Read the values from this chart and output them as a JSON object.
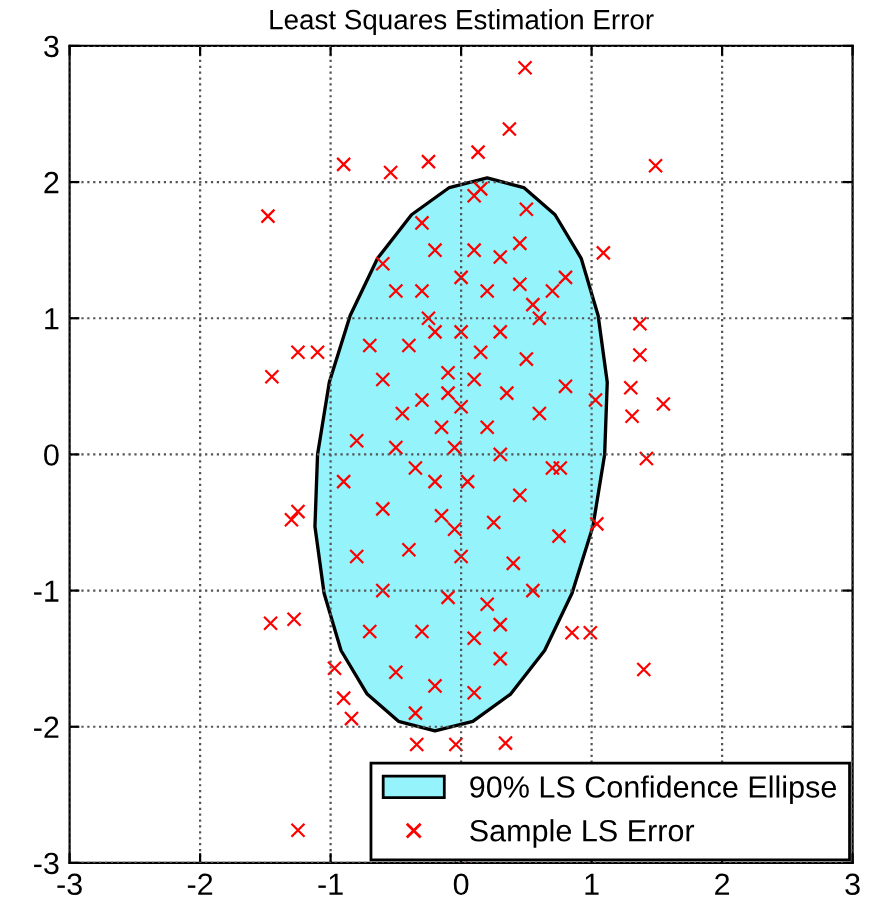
{
  "chart_data": {
    "type": "scatter",
    "title": "Least Squares Estimation Error",
    "xlim": [
      -3,
      3
    ],
    "ylim": [
      -3,
      3
    ],
    "xticks": [
      -3,
      -2,
      -1,
      0,
      1,
      2,
      3
    ],
    "yticks": [
      -3,
      -2,
      -1,
      0,
      1,
      2,
      3
    ],
    "grid": true,
    "legend": "bottom right",
    "series": [
      {
        "name": "90% LS Confidence Ellipse",
        "type": "area",
        "color": "#94f3fb",
        "line_style": "solid",
        "x": [
          1.1,
          1.12,
          1.05,
          0.92,
          0.72,
          0.48,
          0.2,
          -0.09,
          -0.38,
          -0.64,
          -0.85,
          -1.01,
          -1.1,
          -1.12,
          -1.05,
          -0.92,
          -0.72,
          -0.48,
          -0.2,
          0.09,
          0.38,
          0.64,
          0.85,
          1.01,
          1.1
        ],
        "values": [
          0,
          0.53,
          1.02,
          1.44,
          1.76,
          1.96,
          2.03,
          1.96,
          1.76,
          1.44,
          1.02,
          0.53,
          0,
          -0.53,
          -1.02,
          -1.44,
          -1.76,
          -1.96,
          -2.03,
          -1.96,
          -1.76,
          -1.44,
          -1.02,
          -0.53,
          0
        ]
      },
      {
        "name": "Sample LS Error",
        "color": "#ff0000",
        "marker": "cross",
        "x": [
          0.49,
          0.37,
          0.13,
          -0.9,
          -0.54,
          -0.25,
          1.49,
          -1.48,
          1.09,
          1.37,
          1.37,
          -1.45,
          1.55,
          1.3,
          1.42,
          -1.25,
          -1.1,
          1.04,
          1.4,
          -1.46,
          -1.28,
          -1.25,
          -1.3,
          -1.25,
          0.0,
          -0.34,
          -0.04,
          0.34,
          -0.9,
          -0.84,
          -0.97,
          0.99,
          0.85,
          0.76,
          1.03,
          1.31,
          0.1,
          0.15,
          -0.3,
          -0.2,
          0.1,
          0.3,
          0.45,
          0.5,
          0.6,
          -0.6,
          -0.5,
          -0.3,
          0.2,
          0.7,
          0.8,
          0.55,
          -0.2,
          0.0,
          0.3,
          -0.7,
          -0.4,
          0.5,
          0.8,
          -0.6,
          -0.1,
          0.1,
          0.35,
          -0.3,
          0.0,
          -0.15,
          0.2,
          0.6,
          -0.8,
          -0.5,
          -0.05,
          0.3,
          0.7,
          -0.9,
          -0.35,
          0.05,
          0.45,
          -0.6,
          -0.15,
          0.25,
          0.75,
          -0.8,
          -0.4,
          0.0,
          0.4,
          -0.6,
          -0.1,
          0.2,
          0.55,
          -0.7,
          -0.3,
          0.1,
          0.3,
          -0.5,
          -0.2,
          0.1,
          -0.35,
          0.3,
          -0.1,
          -0.2,
          0.15,
          -0.45,
          0.45,
          -0.25,
          0.0,
          -0.05
        ],
        "values": [
          2.84,
          2.39,
          2.22,
          2.13,
          2.07,
          2.15,
          2.12,
          1.75,
          1.48,
          0.96,
          0.73,
          0.57,
          0.37,
          0.49,
          -0.03,
          0.75,
          0.75,
          -0.51,
          -1.58,
          -1.24,
          -1.21,
          -0.42,
          -0.48,
          -2.76,
          -2.94,
          -2.13,
          -2.13,
          -2.12,
          -1.79,
          -1.94,
          -1.57,
          -1.31,
          -1.31,
          -0.1,
          0.4,
          0.28,
          1.9,
          1.95,
          1.7,
          1.5,
          1.5,
          1.45,
          1.55,
          1.8,
          1.0,
          1.4,
          1.2,
          1.2,
          1.2,
          1.2,
          1.3,
          1.1,
          0.9,
          0.9,
          0.9,
          0.8,
          0.8,
          0.7,
          0.5,
          0.55,
          0.6,
          0.55,
          0.45,
          0.4,
          0.35,
          0.2,
          0.2,
          0.3,
          0.1,
          0.05,
          0.05,
          0.0,
          -0.1,
          -0.2,
          -0.1,
          -0.2,
          -0.3,
          -0.4,
          -0.45,
          -0.5,
          -0.6,
          -0.75,
          -0.7,
          -0.75,
          -0.8,
          -1.0,
          -1.05,
          -1.1,
          -1.0,
          -1.3,
          -1.3,
          -1.35,
          -1.5,
          -1.6,
          -1.7,
          -1.75,
          -1.9,
          -1.25,
          0.45,
          -0.2,
          0.75,
          0.3,
          1.25,
          1.0,
          1.3,
          -0.55
        ]
      }
    ]
  }
}
